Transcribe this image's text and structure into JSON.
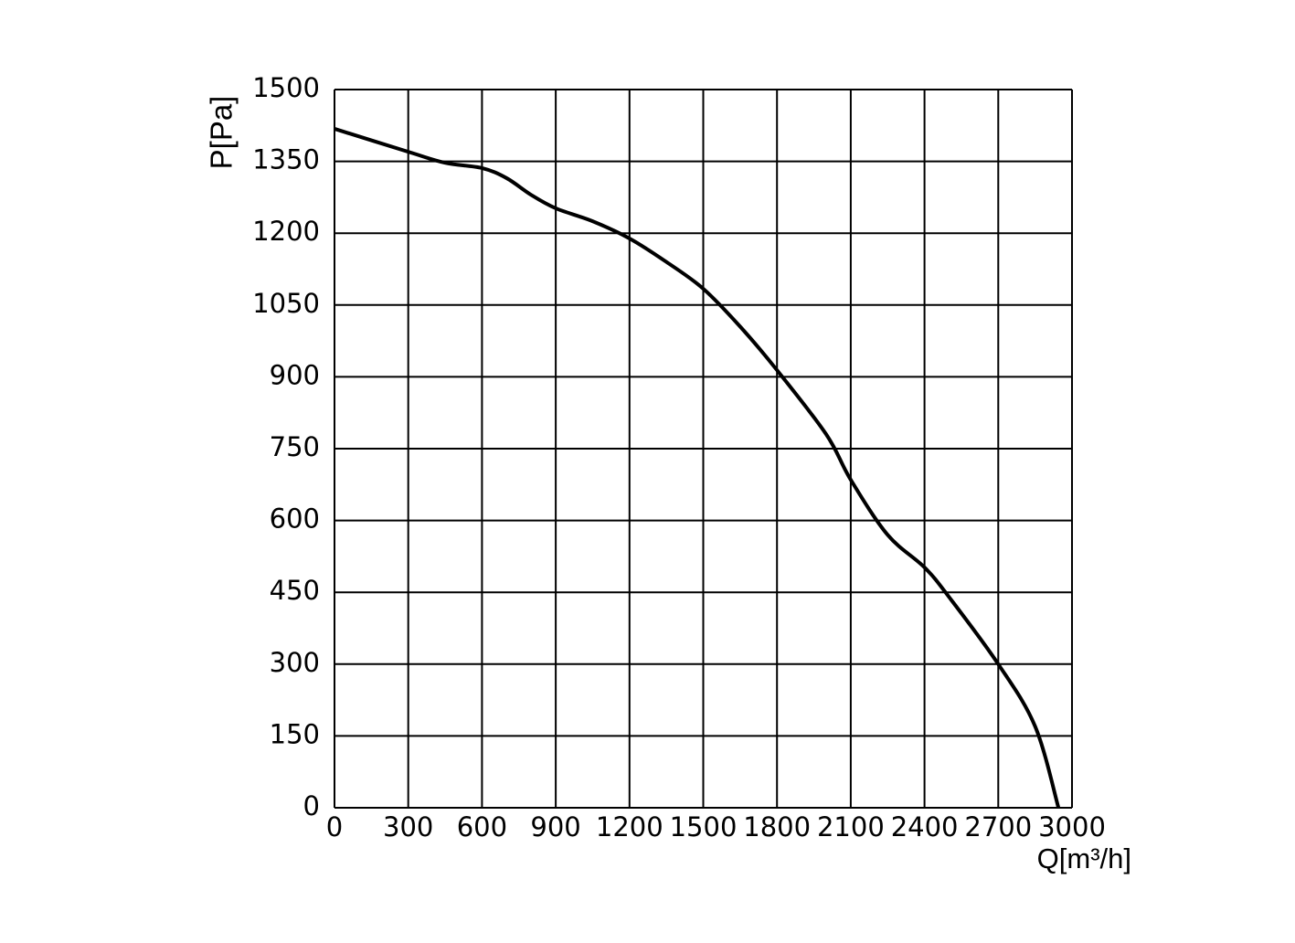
{
  "chart_data": {
    "type": "line",
    "x_label": "Q[m³/h]",
    "y_label": "P[Pa]",
    "x": [
      0,
      300,
      450,
      600,
      700,
      800,
      900,
      1050,
      1200,
      1350,
      1500,
      1650,
      1800,
      2000,
      2100,
      2250,
      2400,
      2500,
      2700,
      2850,
      2945
    ],
    "values": [
      1418,
      1370,
      1347,
      1336,
      1315,
      1280,
      1252,
      1225,
      1189,
      1140,
      1084,
      1005,
      914,
      780,
      685,
      570,
      502,
      440,
      300,
      170,
      0
    ],
    "color": "#000000",
    "xlim": [
      0,
      3000
    ],
    "xticks": [
      0,
      300,
      600,
      900,
      1200,
      1500,
      1800,
      2100,
      2400,
      2700,
      3000
    ],
    "ylim": [
      0,
      1500
    ],
    "yticks": [
      0,
      150,
      300,
      450,
      600,
      750,
      900,
      1050,
      1200,
      1350,
      1500
    ],
    "grid": true
  }
}
